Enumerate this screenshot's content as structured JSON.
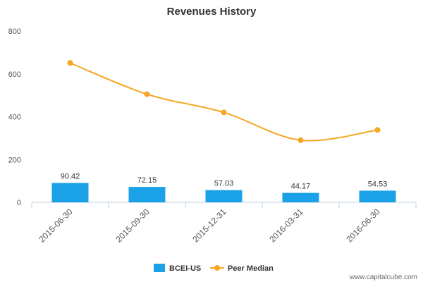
{
  "chart_data": {
    "type": "bar",
    "title": "Revenues History",
    "xlabel": "",
    "ylabel": "",
    "categories": [
      "2015-06-30",
      "2015-09-30",
      "2015-12-31",
      "2016-03-31",
      "2016-06-30"
    ],
    "ylim": [
      0,
      800
    ],
    "yticks": [
      0,
      200,
      400,
      600,
      800
    ],
    "grid": false,
    "legend_position": "bottom",
    "series": [
      {
        "name": "BCEI-US",
        "type": "bar",
        "color": "#1aa1e8",
        "values": [
          90.42,
          72.15,
          57.03,
          44.17,
          54.53
        ],
        "data_labels": [
          "90.42",
          "72.15",
          "57.03",
          "44.17",
          "54.53"
        ]
      },
      {
        "name": "Peer Median",
        "type": "line",
        "color": "#f5a623",
        "values": [
          651,
          505,
          420,
          290,
          338
        ]
      }
    ]
  },
  "watermark": "www.capitalcube.com"
}
